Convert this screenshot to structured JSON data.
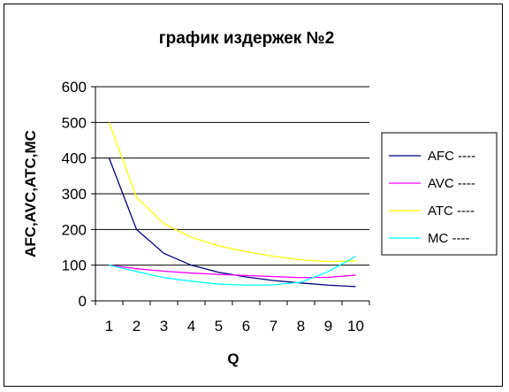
{
  "chart_data": {
    "type": "line",
    "title": "график издержек №2",
    "xlabel": "Q",
    "ylabel": "AFC,AVC,ATC,MC",
    "x": [
      1,
      2,
      3,
      4,
      5,
      6,
      7,
      8,
      9,
      10
    ],
    "ylim": [
      0,
      600
    ],
    "yticks": [
      0,
      100,
      200,
      300,
      400,
      500,
      600
    ],
    "grid": true,
    "legend_position": "right",
    "series": [
      {
        "name": "AFC ----",
        "color": "#000080",
        "values": [
          400,
          200,
          133,
          100,
          80,
          67,
          57,
          50,
          44,
          40
        ]
      },
      {
        "name": "AVC ----",
        "color": "#ff00ff",
        "values": [
          100,
          90,
          83,
          78,
          74,
          71,
          68,
          65,
          66,
          72
        ]
      },
      {
        "name": "ATC ----",
        "color": "#ffff00",
        "values": [
          500,
          290,
          216,
          178,
          154,
          138,
          125,
          115,
          110,
          112
        ]
      },
      {
        "name": "MC ----",
        "color": "#00ffff",
        "values": [
          100,
          82,
          65,
          55,
          47,
          44,
          45,
          52,
          82,
          125
        ]
      }
    ]
  }
}
